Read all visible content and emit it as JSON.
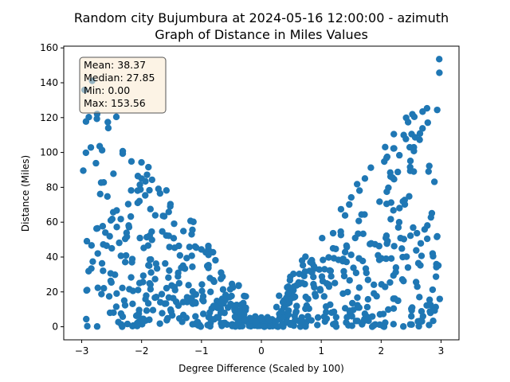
{
  "chart_data": {
    "type": "scatter",
    "title_line1": "Random city Bujumbura at 2024-05-16 12:00:00  - azimuth",
    "title_line2": "Graph of Distance in Miles Values",
    "xlabel": "Degree Difference (Scaled by 100)",
    "ylabel": "Distance (Miles)",
    "xlim": [
      -3.3,
      3.3
    ],
    "ylim": [
      -7.5,
      161
    ],
    "xticks": [
      -3,
      -2,
      -1,
      0,
      1,
      2,
      3
    ],
    "yticks": [
      0,
      20,
      40,
      60,
      80,
      100,
      120,
      140,
      160
    ],
    "grid": false,
    "marker_color": "#1f77b4",
    "stats": {
      "mean": "Mean: 38.37",
      "median": "Median: 27.85",
      "min": "Min: 0.00",
      "max": "Max: 153.56"
    },
    "stats_box_color": "#f9e9cf",
    "seed": 20240516
  }
}
